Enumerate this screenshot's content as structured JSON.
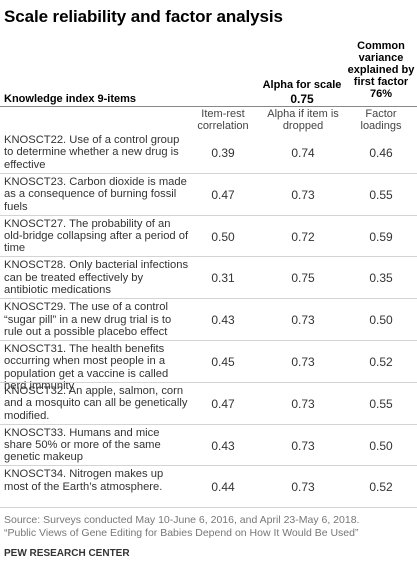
{
  "title": "Scale reliability and factor analysis",
  "header": {
    "index_label": "Knowledge index 9-items",
    "alpha_label": "Alpha for scale",
    "alpha_value": "0.75",
    "common_variance_label": "Common variance explained by first factor",
    "common_variance_value": "76%"
  },
  "columns": [
    "Item-rest correlation",
    "Alpha if item is dropped",
    "Factor loadings"
  ],
  "rows": [
    {
      "label": "KNOSCT22. Use of a control group to determine whether a new drug is effective",
      "item_rest": "0.39",
      "alpha_dropped": "0.74",
      "loading": "0.46"
    },
    {
      "label": "KNOSCT23. Carbon dioxide is made as a consequence of burning fossil fuels",
      "item_rest": "0.47",
      "alpha_dropped": "0.73",
      "loading": "0.55"
    },
    {
      "label": "KNOSCT27. The probability of an old-bridge collapsing after a period of time",
      "item_rest": "0.50",
      "alpha_dropped": "0.72",
      "loading": "0.59"
    },
    {
      "label": "KNOSCT28. Only bacterial infections can be treated effectively by antibiotic medications",
      "item_rest": "0.31",
      "alpha_dropped": "0.75",
      "loading": "0.35"
    },
    {
      "label": "KNOSCT29. The use of a control “sugar pill” in a new drug trial is to rule out a possible placebo effect",
      "item_rest": "0.43",
      "alpha_dropped": "0.73",
      "loading": "0.50"
    },
    {
      "label": "KNOSCT31. The health benefits occurring when most people in a population get a vaccine is called herd immunity",
      "item_rest": "0.45",
      "alpha_dropped": "0.73",
      "loading": "0.52"
    },
    {
      "label": "KNOSCT32. An apple, salmon, corn and a mosquito can all be genetically modified.",
      "item_rest": "0.47",
      "alpha_dropped": "0.73",
      "loading": "0.55"
    },
    {
      "label": "KNOSCT33. Humans and mice share 50% or more of the same genetic makeup",
      "item_rest": "0.43",
      "alpha_dropped": "0.73",
      "loading": "0.50"
    },
    {
      "label": "KNOSCT34. Nitrogen makes up most of the Earth’s atmosphere.",
      "item_rest": "0.44",
      "alpha_dropped": "0.73",
      "loading": "0.52"
    }
  ],
  "source_line1": "Source: Surveys conducted May 10-June 6, 2016, and April 23-May 6, 2018.",
  "source_line2": "“Public Views of Gene Editing for Babies Depend on How It Would Be Used”",
  "brand": "PEW RESEARCH CENTER"
}
